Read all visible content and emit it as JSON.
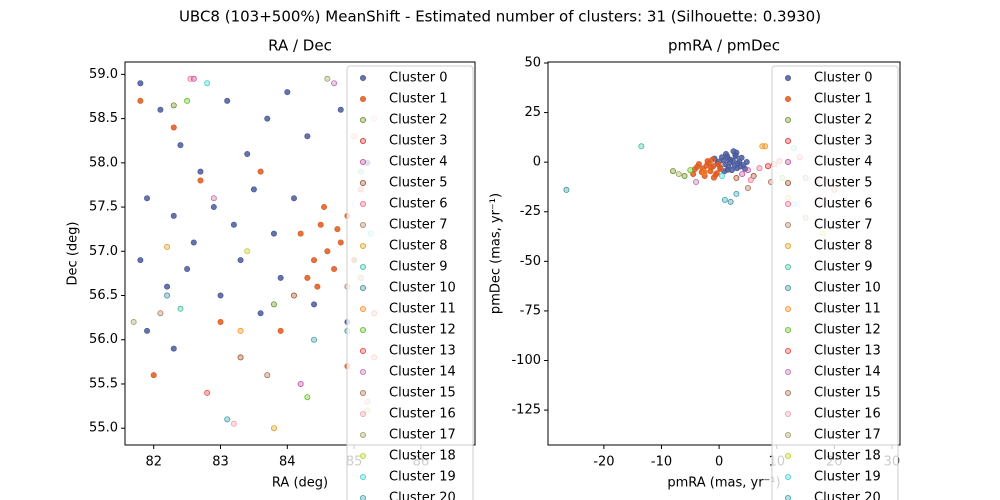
{
  "title": "UBC8 (103+500%) MeanShift - Estimated number of clusters: 31 (Silhouette: 0.3930)",
  "chart_data": [
    {
      "type": "scatter",
      "title": "RA / Dec",
      "xlabel": "RA (deg)",
      "ylabel": "Dec (deg)",
      "xlim": [
        81.57,
        86.81
      ],
      "ylim": [
        54.81,
        59.14
      ],
      "xticks": [
        82,
        83,
        84,
        85,
        86
      ],
      "yticks": [
        {
          "value": 55,
          "label": "55.0"
        },
        55.5,
        {
          "value": 56,
          "label": "56.0"
        },
        56.5,
        {
          "value": 57,
          "label": "57.0"
        },
        57.5,
        {
          "value": 58,
          "label": "58.0"
        },
        58.5,
        {
          "value": 59,
          "label": "59.0"
        }
      ],
      "legend": "upper right",
      "series": [
        {
          "name": "Cluster 0",
          "color": "#4c5c9c",
          "x": [
            81.8,
            82.1,
            82.4,
            82.7,
            83.1,
            83.4,
            83.7,
            84.0,
            84.3,
            84.8,
            85.2,
            81.9,
            82.3,
            82.6,
            82.9,
            83.2,
            83.5,
            83.8,
            84.1,
            81.8,
            82.2,
            82.5,
            83.0,
            83.3,
            83.6,
            83.9,
            84.4,
            84.9,
            81.9,
            82.3
          ],
          "y": [
            58.9,
            58.6,
            58.2,
            57.9,
            58.7,
            58.1,
            58.5,
            58.8,
            58.3,
            58.6,
            58.0,
            57.6,
            57.4,
            57.1,
            57.5,
            57.3,
            57.7,
            57.2,
            57.6,
            56.9,
            56.6,
            56.8,
            56.5,
            56.9,
            56.3,
            56.7,
            56.4,
            56.2,
            56.1,
            55.9
          ]
        },
        {
          "name": "Cluster 1",
          "color": "#e05a20",
          "x": [
            84.2,
            84.4,
            84.5,
            84.6,
            84.7,
            84.8,
            84.9,
            85.0,
            84.3,
            84.55,
            84.75,
            84.45,
            82.3,
            81.8,
            83.6,
            82.0,
            83.0,
            83.9,
            84.9,
            82.7
          ],
          "y": [
            57.2,
            56.9,
            57.3,
            57.0,
            56.8,
            57.1,
            57.4,
            56.9,
            56.7,
            57.5,
            57.25,
            56.6,
            58.4,
            58.7,
            57.9,
            55.6,
            56.2,
            56.1,
            55.7,
            57.8
          ]
        },
        {
          "name": "Cluster 2",
          "color": "#6b8e23",
          "x": [
            82.3,
            83.8
          ],
          "y": [
            58.65,
            56.4
          ]
        },
        {
          "name": "Cluster 3",
          "color": "#e03030",
          "x": [
            85.1,
            85.3
          ],
          "y": [
            57.7,
            56.3
          ]
        },
        {
          "name": "Cluster 4",
          "color": "#c050a0",
          "x": [
            82.6,
            84.2
          ],
          "y": [
            58.95,
            55.5
          ]
        },
        {
          "name": "Cluster 5",
          "color": "#a0522d",
          "x": [
            84.1,
            83.3
          ],
          "y": [
            56.5,
            55.8
          ]
        },
        {
          "name": "Cluster 6",
          "color": "#f07090",
          "x": [
            82.55,
            85.2
          ],
          "y": [
            58.95,
            55.3
          ]
        },
        {
          "name": "Cluster 7",
          "color": "#b08060",
          "x": [
            84.9,
            82.1
          ],
          "y": [
            56.6,
            56.3
          ]
        },
        {
          "name": "Cluster 8",
          "color": "#e0a020",
          "x": [
            83.8,
            82.2
          ],
          "y": [
            55.0,
            57.05
          ]
        },
        {
          "name": "Cluster 9",
          "color": "#40c0a0",
          "x": [
            82.4,
            85.1
          ],
          "y": [
            56.35,
            57.9
          ]
        },
        {
          "name": "Cluster 10",
          "color": "#4090a0",
          "x": [
            82.2,
            84.9
          ],
          "y": [
            56.5,
            56.1
          ]
        },
        {
          "name": "Cluster 11",
          "color": "#ff9020",
          "x": [
            83.3,
            85.0
          ],
          "y": [
            56.1,
            58.3
          ]
        },
        {
          "name": "Cluster 12",
          "color": "#60c020",
          "x": [
            82.5,
            84.3
          ],
          "y": [
            58.7,
            55.35
          ]
        },
        {
          "name": "Cluster 13",
          "color": "#f04040",
          "x": [
            82.8,
            85.3
          ],
          "y": [
            55.4,
            55.8
          ]
        },
        {
          "name": "Cluster 14",
          "color": "#c070b0",
          "x": [
            84.7,
            82.9
          ],
          "y": [
            58.9,
            57.6
          ]
        },
        {
          "name": "Cluster 15",
          "color": "#b07050",
          "x": [
            83.7,
            85.1
          ],
          "y": [
            55.6,
            56.7
          ]
        },
        {
          "name": "Cluster 16",
          "color": "#f0a0b0",
          "x": [
            83.2,
            85.3
          ],
          "y": [
            55.05,
            58.5
          ]
        },
        {
          "name": "Cluster 17",
          "color": "#a0a060",
          "x": [
            81.7,
            84.6
          ],
          "y": [
            56.2,
            58.95
          ]
        },
        {
          "name": "Cluster 18",
          "color": "#c0d020",
          "x": [
            83.4,
            85.2
          ],
          "y": [
            57.0,
            55.2
          ]
        },
        {
          "name": "Cluster 19",
          "color": "#40d0d0",
          "x": [
            85.25,
            82.8
          ],
          "y": [
            57.2,
            58.9
          ]
        },
        {
          "name": "Cluster 20",
          "color": "#40a0b0",
          "x": [
            84.4,
            83.1
          ],
          "y": [
            56.0,
            55.1
          ]
        }
      ]
    },
    {
      "type": "scatter",
      "title": "pmRA / pmDec",
      "xlabel": "pmRA (mas, yr⁻¹)",
      "ylabel": "pmDec (mas, yr⁻¹)",
      "xlim": [
        -29.7,
        31.4
      ],
      "ylim": [
        -142.6,
        50.5
      ],
      "xticks": [
        -20,
        -10,
        0,
        10,
        20,
        30
      ],
      "yticks": [
        -125,
        -100,
        -75,
        -50,
        -25,
        0,
        25,
        50
      ],
      "legend": "upper right",
      "series": [
        {
          "name": "Cluster 0",
          "color": "#4c5c9c",
          "x": [
            0.5,
            1.2,
            2.0,
            2.8,
            3.5,
            4.2,
            -0.3,
            1.6,
            2.5,
            3.1,
            0.8,
            1.9,
            2.7,
            3.9,
            4.8,
            -0.8,
            0.2,
            1.4,
            2.2,
            3.3,
            0.9,
            1.7,
            2.9,
            3.7,
            4.5,
            1.1,
            2.4,
            0.0,
            3.0,
            1.5
          ],
          "y": [
            2.5,
            4.1,
            1.2,
            3.6,
            0.4,
            -1.5,
            -0.8,
            -2.4,
            5.5,
            -3.1,
            0.9,
            -0.2,
            -1.8,
            2.2,
            0.1,
            1.8,
            -2.9,
            3.0,
            -4.0,
            -0.6,
            -4.6,
            1.5,
            2.9,
            -2.2,
            -3.4,
            -1.1,
            0.6,
            0.3,
            4.8,
            -3.8
          ]
        },
        {
          "name": "Cluster 1",
          "color": "#e05a20",
          "x": [
            -3.5,
            -2.8,
            -2.0,
            -1.5,
            -1.0,
            -0.4,
            0.2,
            -3.0,
            -2.2,
            -1.2,
            -0.6,
            -4.2,
            -2.5,
            -1.8,
            -3.8,
            -0.9,
            -2.6,
            -1.4,
            -4.5,
            -0.1
          ],
          "y": [
            -1.0,
            -3.2,
            0.5,
            -4.5,
            -2.0,
            -5.6,
            -3.4,
            -5.0,
            -1.8,
            1.2,
            -6.4,
            -3.5,
            -7.0,
            -0.5,
            -2.4,
            -7.8,
            -4.8,
            -2.6,
            -6.0,
            -1.2
          ]
        },
        {
          "name": "Cluster 2",
          "color": "#6b8e23",
          "x": [
            -8,
            -6
          ],
          "y": [
            -4.5,
            -7
          ]
        },
        {
          "name": "Cluster 3",
          "color": "#e03030",
          "x": [
            8.5,
            10.5
          ],
          "y": [
            -2,
            0.5
          ]
        },
        {
          "name": "Cluster 4",
          "color": "#c050a0",
          "x": [
            5,
            4
          ],
          "y": [
            -4,
            -6
          ]
        },
        {
          "name": "Cluster 5",
          "color": "#a0522d",
          "x": [
            6,
            3
          ],
          "y": [
            -7,
            -8
          ]
        },
        {
          "name": "Cluster 6",
          "color": "#f07090",
          "x": [
            7,
            5.5
          ],
          "y": [
            -3,
            -9
          ]
        },
        {
          "name": "Cluster 7",
          "color": "#b08060",
          "x": [
            15,
            20
          ],
          "y": [
            -8,
            -14
          ]
        },
        {
          "name": "Cluster 8",
          "color": "#e0a020",
          "x": [
            7.5,
            12
          ],
          "y": [
            8,
            -18
          ]
        },
        {
          "name": "Cluster 9",
          "color": "#40c0a0",
          "x": [
            -13.5,
            13
          ],
          "y": [
            8,
            7
          ]
        },
        {
          "name": "Cluster 10",
          "color": "#4090a0",
          "x": [
            -26.5,
            2
          ],
          "y": [
            -14,
            -20
          ]
        },
        {
          "name": "Cluster 11",
          "color": "#ff9020",
          "x": [
            -2.5,
            8
          ],
          "y": [
            -5,
            8
          ]
        },
        {
          "name": "Cluster 12",
          "color": "#60c020",
          "x": [
            11,
            -5
          ],
          "y": [
            -8,
            -4
          ]
        },
        {
          "name": "Cluster 13",
          "color": "#f04040",
          "x": [
            14,
            9.5
          ],
          "y": [
            2.5,
            -1
          ]
        },
        {
          "name": "Cluster 14",
          "color": "#c070b0",
          "x": [
            17,
            -4
          ],
          "y": [
            -10,
            -10
          ]
        },
        {
          "name": "Cluster 15",
          "color": "#b07050",
          "x": [
            5,
            9
          ],
          "y": [
            -13,
            -10
          ]
        },
        {
          "name": "Cluster 16",
          "color": "#f0a0b0",
          "x": [
            23,
            18
          ],
          "y": [
            -11,
            -20
          ]
        },
        {
          "name": "Cluster 17",
          "color": "#a0a060",
          "x": [
            -7,
            15
          ],
          "y": [
            -6,
            -28
          ]
        },
        {
          "name": "Cluster 18",
          "color": "#c0d020",
          "x": [
            18,
            12
          ],
          "y": [
            -36,
            42
          ]
        },
        {
          "name": "Cluster 19",
          "color": "#40d0d0",
          "x": [
            13,
            0.5
          ],
          "y": [
            -21,
            -7
          ]
        },
        {
          "name": "Cluster 20",
          "color": "#40a0b0",
          "x": [
            3,
            1
          ],
          "y": [
            -16,
            -19
          ]
        }
      ]
    }
  ]
}
